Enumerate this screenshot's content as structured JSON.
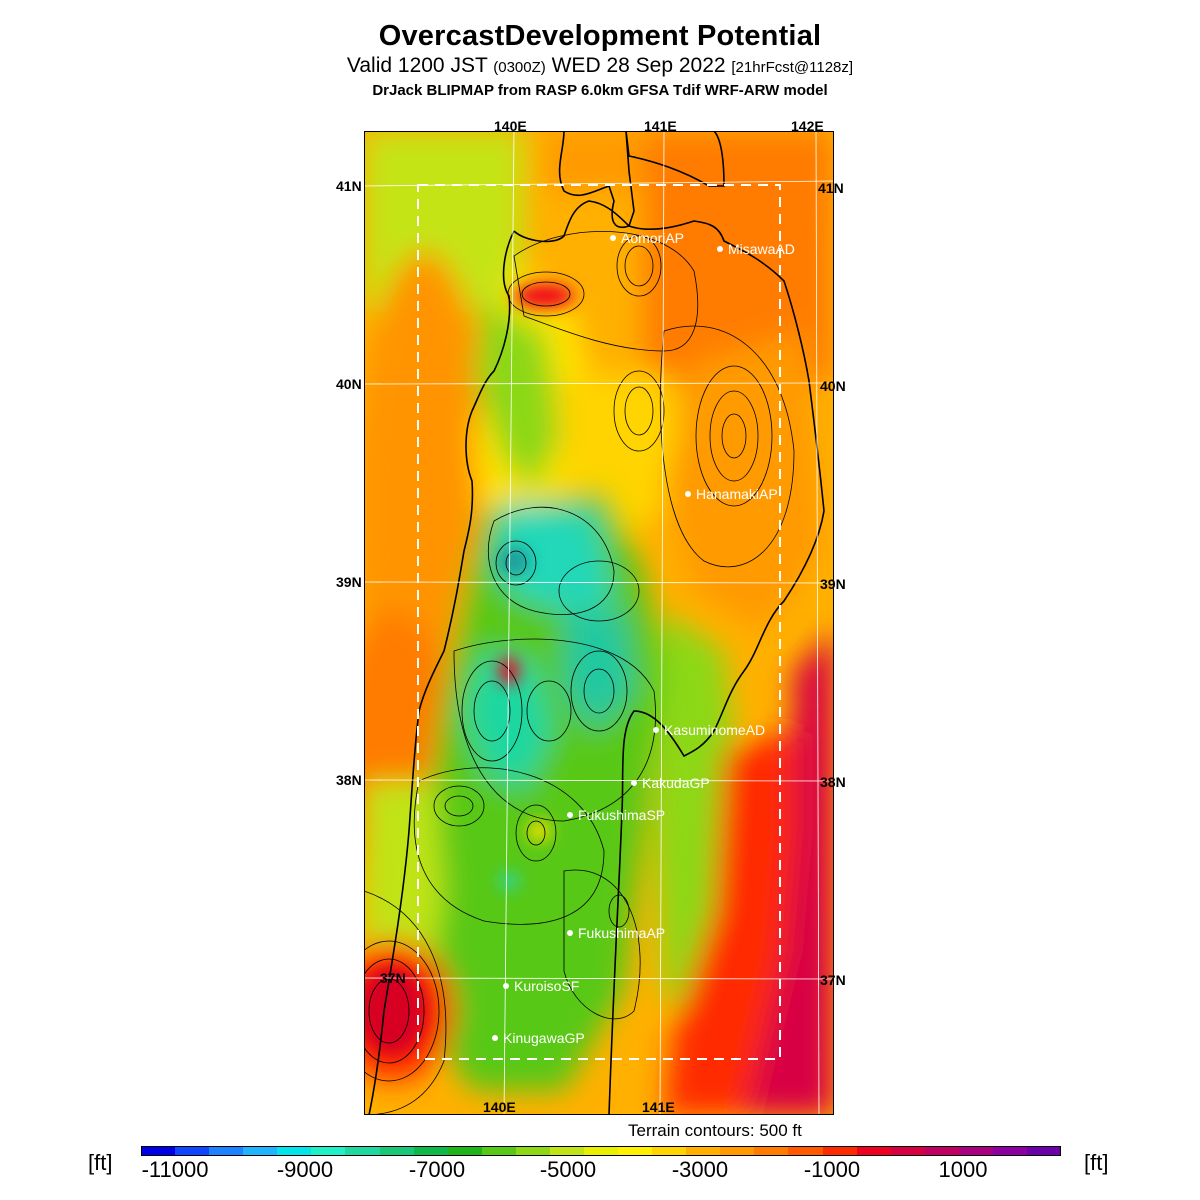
{
  "header": {
    "title": "OvercastDevelopment Potential",
    "valid_main": "Valid 1200 JST ",
    "valid_small1": "(0300Z)",
    "valid_day": " WED 28 Sep 2022 ",
    "valid_small2": "[21hrFcst@1128z]",
    "model": "DrJack BLIPMAP from RASP 6.0km GFSA Tdif WRF-ARW model"
  },
  "map": {
    "lon_labels_top": [
      "140E",
      "141E",
      "142E"
    ],
    "lon_labels_bottom": [
      "140E",
      "141E"
    ],
    "lat_labels_left": [
      "41N",
      "40N",
      "39N",
      "38N",
      "37N"
    ],
    "lat_labels_right": [
      "41N",
      "40N",
      "39N",
      "38N",
      "37N"
    ],
    "stations": [
      {
        "name": "AomoriAP"
      },
      {
        "name": "MisawaAD"
      },
      {
        "name": "HanamakiAP"
      },
      {
        "name": "KasuminomeAD"
      },
      {
        "name": "KakudaGP"
      },
      {
        "name": "FukushimaSP"
      },
      {
        "name": "FukushimaAP"
      },
      {
        "name": "KuroisoSF"
      },
      {
        "name": "KinugawaGP"
      }
    ],
    "terrain_note": "Terrain contours: 500 ft"
  },
  "colorbar": {
    "unit_left": "[ft]",
    "unit_right": "[ft]",
    "ticks": [
      "-11000",
      "-9000",
      "-7000",
      "-5000",
      "-3000",
      "-1000",
      "1000"
    ],
    "colors": [
      "#0000e6",
      "#1046ff",
      "#1d82ff",
      "#20b4ff",
      "#00e4ea",
      "#20f0c8",
      "#1ed8a0",
      "#18c878",
      "#10b848",
      "#20b41a",
      "#58c818",
      "#8cd814",
      "#c0e418",
      "#e8f000",
      "#fff000",
      "#ffd400",
      "#ffb000",
      "#ff9a00",
      "#ff7c00",
      "#ff5a00",
      "#ff2a00",
      "#f00020",
      "#d80044",
      "#c00060",
      "#a80080",
      "#8c00a0",
      "#6c00a8"
    ]
  }
}
